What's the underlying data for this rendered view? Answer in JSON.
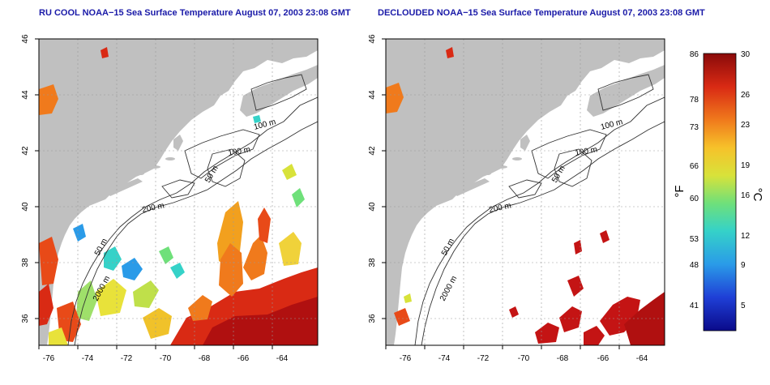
{
  "panels": [
    {
      "title": "RU COOL NOAA−15 Sea Surface Temperature August 07, 2003 23:08 GMT",
      "contour_labels": [
        "100 m",
        "100 m",
        "50 m",
        "200 m",
        "50 m",
        "2000 m"
      ]
    },
    {
      "title": "DECLOUDED NOAA−15 Sea Surface Temperature August 07, 2003 23:08 GMT",
      "contour_labels": [
        "100 m",
        "100 m",
        "50 m",
        "200 m",
        "50 m",
        "2000 m"
      ]
    }
  ],
  "axes": {
    "lon_ticks": [
      "-76",
      "-74",
      "-72",
      "-70",
      "-68",
      "-66",
      "-64"
    ],
    "lat_ticks": [
      "46",
      "44",
      "42",
      "40",
      "38",
      "36"
    ]
  },
  "colorbar": {
    "fahrenheit_label": "°F",
    "celsius_label": "°C",
    "fahrenheit_ticks": [
      "86",
      "78",
      "73",
      "66",
      "60",
      "53",
      "48",
      "41"
    ],
    "celsius_ticks": [
      "30",
      "26",
      "23",
      "19",
      "16",
      "12",
      "9",
      "5"
    ],
    "colors": [
      "#0a0a8a",
      "#1f3fd6",
      "#2a9be8",
      "#35d2c8",
      "#6fe07a",
      "#d8e23a",
      "#f6c22a",
      "#f07a1c",
      "#d92a14",
      "#8a0a0a"
    ]
  },
  "colors": {
    "land": "#c0c0c0",
    "ocean": "#ffffff",
    "title": "#1a1aa8"
  }
}
